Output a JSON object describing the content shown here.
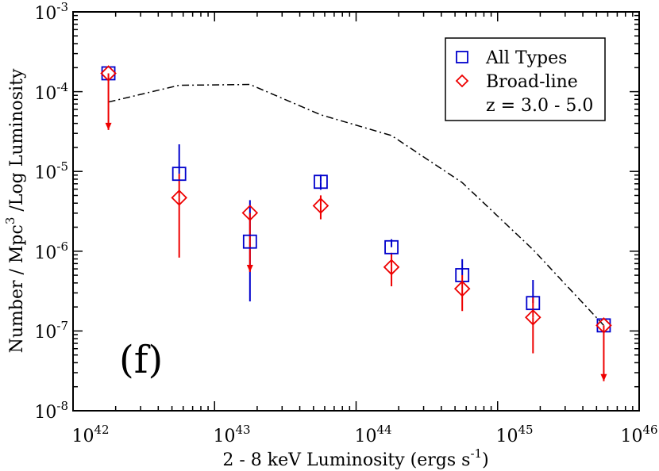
{
  "chart_data": {
    "type": "scatter",
    "xscale": "log",
    "yscale": "log",
    "xlim_exp": [
      42,
      46
    ],
    "ylim_exp": [
      -8,
      -3
    ],
    "x_tick_labels": [
      {
        "base": "10",
        "exp": "42"
      },
      {
        "base": "10",
        "exp": "43"
      },
      {
        "base": "10",
        "exp": "44"
      },
      {
        "base": "10",
        "exp": "45"
      },
      {
        "base": "10",
        "exp": "46"
      }
    ],
    "y_tick_labels": [
      {
        "base": "10",
        "exp": "-8"
      },
      {
        "base": "10",
        "exp": "-7"
      },
      {
        "base": "10",
        "exp": "-6"
      },
      {
        "base": "10",
        "exp": "-5"
      },
      {
        "base": "10",
        "exp": "-4"
      },
      {
        "base": "10",
        "exp": "-3"
      }
    ],
    "xlabel": {
      "pre": "2 - 8 keV Luminosity  (ergs s",
      "sup": "-1",
      "post": ")"
    },
    "ylabel": {
      "pre": "Number / Mpc",
      "sup": "3",
      "post": " /Log Luminosity"
    },
    "panel_label": "(f)",
    "legend_position": "top-right",
    "series": [
      {
        "name": "All Types",
        "marker": "square",
        "color": "#0000cc",
        "points": [
          {
            "logx": 42.25,
            "logy": -3.77,
            "upper_limit": true
          },
          {
            "logx": 42.75,
            "logy": -5.03,
            "err_lo": null,
            "err_hi": -4.66
          },
          {
            "logx": 43.25,
            "logy": -5.88,
            "err_lo": -6.63,
            "err_hi": -5.36
          },
          {
            "logx": 43.75,
            "logy": -5.13,
            "err_lo": -5.23,
            "err_hi": -5.04
          },
          {
            "logx": 44.25,
            "logy": -5.95,
            "err_lo": null,
            "err_hi": -5.85
          },
          {
            "logx": 44.75,
            "logy": -6.3,
            "err_lo": null,
            "err_hi": -6.1
          },
          {
            "logx": 45.25,
            "logy": -6.65,
            "err_lo": null,
            "err_hi": -6.36
          },
          {
            "logx": 45.75,
            "logy": -6.93,
            "upper_limit": true
          }
        ]
      },
      {
        "name": "Broad-line",
        "marker": "diamond",
        "color": "#ee0000",
        "points": [
          {
            "logx": 42.25,
            "logy": -3.77,
            "upper_limit": true,
            "limit_end": -4.48
          },
          {
            "logx": 42.75,
            "logy": -5.33,
            "err_lo": -6.08,
            "err_hi": -5.03
          },
          {
            "logx": 43.25,
            "logy": -5.52,
            "upper_limit": true,
            "limit_end": -6.26
          },
          {
            "logx": 43.75,
            "logy": -5.43,
            "err_lo": -5.6,
            "err_hi": -5.3
          },
          {
            "logx": 44.25,
            "logy": -6.2,
            "err_lo": -6.44,
            "err_hi": -6.02
          },
          {
            "logx": 44.75,
            "logy": -6.47,
            "err_lo": -6.75,
            "err_hi": -6.3
          },
          {
            "logx": 45.25,
            "logy": -6.83,
            "err_lo": -7.28,
            "err_hi": -6.58
          },
          {
            "logx": 45.75,
            "logy": -6.93,
            "upper_limit": true,
            "limit_end": -7.63
          }
        ]
      },
      {
        "name": "model",
        "style": "dash-dot",
        "color": "#000000",
        "points": [
          {
            "logx": 42.25,
            "logy": -4.13
          },
          {
            "logx": 42.75,
            "logy": -3.92
          },
          {
            "logx": 43.25,
            "logy": -3.91
          },
          {
            "logx": 43.75,
            "logy": -4.29
          },
          {
            "logx": 44.25,
            "logy": -4.55
          },
          {
            "logx": 44.75,
            "logy": -5.14
          },
          {
            "logx": 45.25,
            "logy": -5.98
          },
          {
            "logx": 45.75,
            "logy": -6.93
          }
        ]
      }
    ],
    "legend_entries": [
      {
        "label": "All Types",
        "marker": "square",
        "color": "#0000cc"
      },
      {
        "label": "Broad-line",
        "marker": "diamond",
        "color": "#ee0000"
      },
      {
        "label": "z = 3.0 - 5.0",
        "marker": "none",
        "color": "#000000"
      }
    ]
  }
}
